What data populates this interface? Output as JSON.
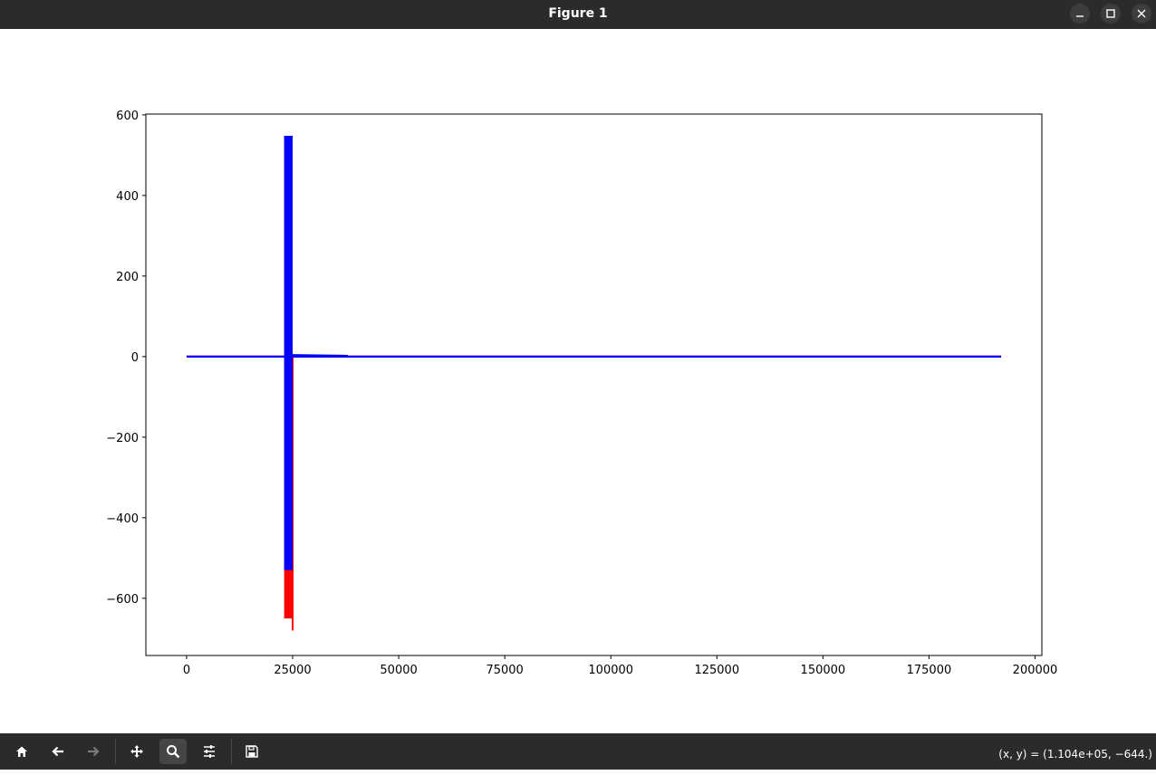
{
  "window": {
    "title": "Figure 1",
    "controls": [
      "minimize-icon",
      "maximize-icon",
      "close-icon"
    ]
  },
  "toolbar": {
    "buttons": [
      "home-icon",
      "back-arrow-icon",
      "forward-arrow-icon",
      "pan-icon",
      "zoom-icon",
      "configure-subplots-icon",
      "save-icon"
    ],
    "active": "zoom-icon",
    "coords_text": "(x, y) = (1.104e+05, −644.)"
  },
  "chart_data": {
    "type": "line",
    "title": "",
    "xlabel": "",
    "ylabel": "",
    "xlim": [
      -9600,
      201600
    ],
    "ylim": [
      -742,
      602
    ],
    "x_ticks": [
      0,
      25000,
      50000,
      75000,
      100000,
      125000,
      150000,
      175000,
      200000
    ],
    "x_tick_labels": [
      "0",
      "25000",
      "50000",
      "75000",
      "100000",
      "125000",
      "150000",
      "175000",
      "200000"
    ],
    "y_ticks": [
      -600,
      -400,
      -200,
      0,
      200,
      400,
      600
    ],
    "y_tick_labels": [
      "−600",
      "−400",
      "−200",
      "0",
      "200",
      "400",
      "600"
    ],
    "grid": false,
    "series": [
      {
        "color": "#ff0000",
        "x_range": [
          0,
          192000
        ],
        "baseline": 0,
        "burst": {
          "x_start": 23000,
          "x_end": 25000,
          "y_min": -650,
          "y_max": 548
        },
        "spike": {
          "x": 25000,
          "y_min": -680
        }
      },
      {
        "color": "#0000ff",
        "x_range": [
          0,
          192000
        ],
        "baseline": 0,
        "burst": {
          "x_start": 23000,
          "x_end": 25000,
          "y_min": -530,
          "y_max": 548
        }
      }
    ]
  }
}
